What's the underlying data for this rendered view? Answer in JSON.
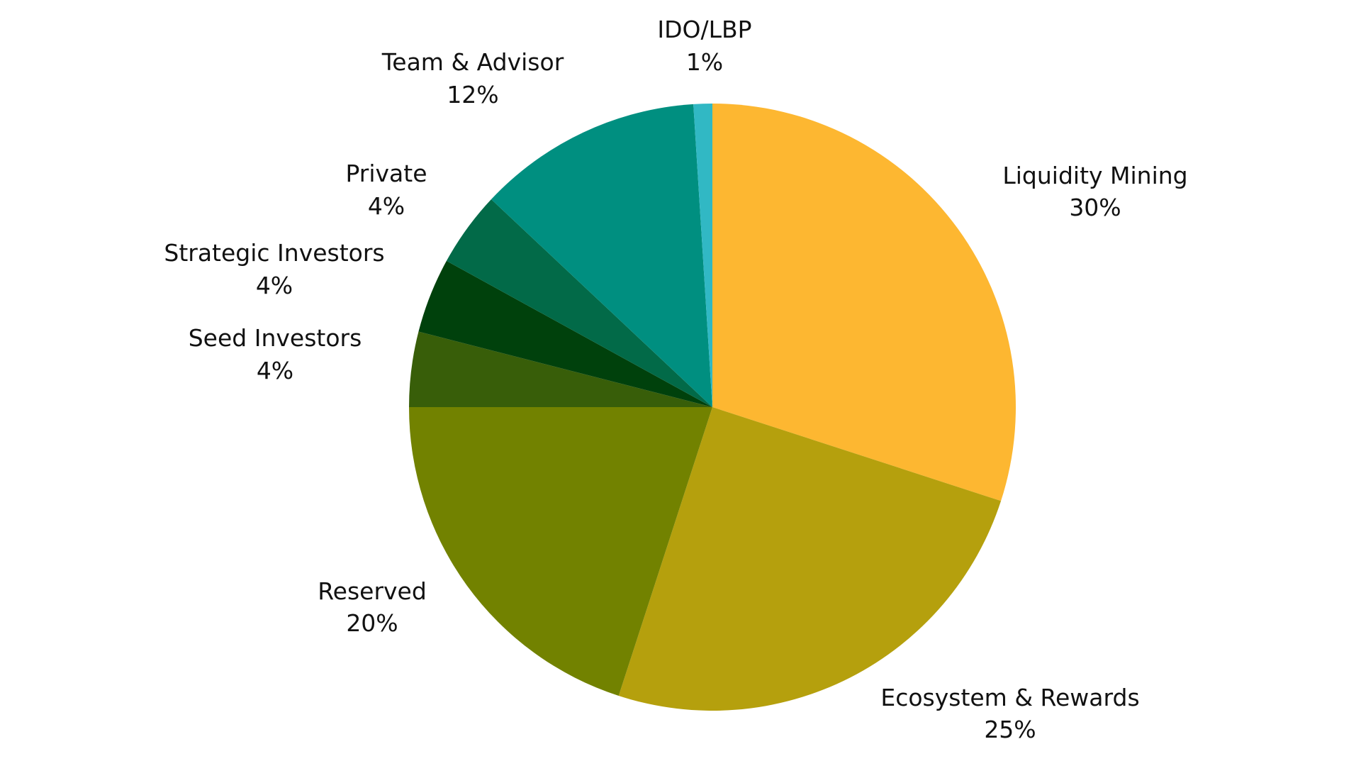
{
  "chart_data": {
    "type": "pie",
    "title": "",
    "start_angle_deg": 0,
    "direction": "clockwise",
    "legend": "none",
    "slices": [
      {
        "name": "Liquidity Mining",
        "value": 30,
        "label": "30%",
        "color": "#FDB731"
      },
      {
        "name": "Ecosystem & Rewards",
        "value": 25,
        "label": "25%",
        "color": "#B5A00D"
      },
      {
        "name": "Reserved",
        "value": 20,
        "label": "20%",
        "color": "#728200"
      },
      {
        "name": "Seed Investors",
        "value": 4,
        "label": "4%",
        "color": "#385E09"
      },
      {
        "name": "Strategic Investors",
        "value": 4,
        "label": "4%",
        "color": "#00410C"
      },
      {
        "name": "Private",
        "value": 4,
        "label": "4%",
        "color": "#026A48"
      },
      {
        "name": "Team & Advisor",
        "value": 12,
        "label": "12%",
        "color": "#008F80"
      },
      {
        "name": "IDO/LBP",
        "value": 1,
        "label": "1%",
        "color": "#31B8C4"
      }
    ]
  }
}
